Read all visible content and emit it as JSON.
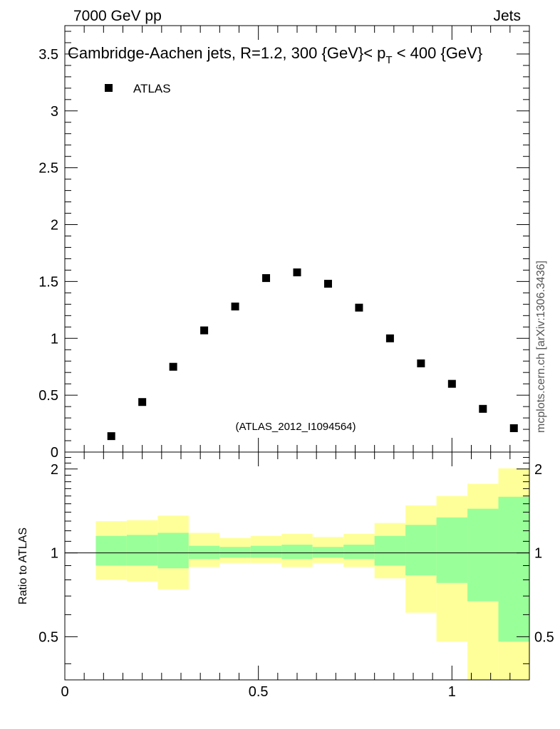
{
  "header": {
    "energy_label": "7000 GeV pp",
    "category_label": "Jets"
  },
  "side_label": "mcplots.cern.ch [arXiv:1306.3436]",
  "colors": {
    "band_inner": "#99ff99",
    "band_outer": "#ffff99",
    "marker": "#000000",
    "watermark": "#999999"
  },
  "chart_data": [
    {
      "type": "scatter",
      "title": "Cambridge-Aachen jets, R=1.2,  300 {GeV}< p_T < 400 {GeV}",
      "title_parts": {
        "pre": "Cambridge-Aachen jets, R=1.2,  300 {GeV}< p",
        "sub": "T",
        "post": " < 400 {GeV}"
      },
      "watermark": "(ATLAS_2012_I1094564)",
      "legend": {
        "label": "ATLAS",
        "position": "top-left"
      },
      "xlim": [
        0,
        1.2
      ],
      "ylim": [
        0,
        3.75
      ],
      "yticks": [
        {
          "v": 0,
          "label": "0"
        },
        {
          "v": 0.5,
          "label": "0.5"
        },
        {
          "v": 1,
          "label": "1"
        },
        {
          "v": 1.5,
          "label": "1.5"
        },
        {
          "v": 2,
          "label": "2"
        },
        {
          "v": 2.5,
          "label": "2.5"
        },
        {
          "v": 3,
          "label": "3"
        },
        {
          "v": 3.5,
          "label": "3.5"
        }
      ],
      "series": [
        {
          "name": "ATLAS",
          "x": [
            0.12,
            0.2,
            0.28,
            0.36,
            0.44,
            0.52,
            0.6,
            0.68,
            0.76,
            0.84,
            0.92,
            1.0,
            1.08,
            1.16
          ],
          "y": [
            0.14,
            0.44,
            0.75,
            1.07,
            1.28,
            1.53,
            1.58,
            1.48,
            1.27,
            1.0,
            0.78,
            0.6,
            0.38,
            0.21
          ]
        }
      ]
    },
    {
      "type": "area",
      "ylabel": "Ratio to ATLAS",
      "xlim": [
        0,
        1.2
      ],
      "ylim": [
        0.35,
        2.3
      ],
      "yscale": "log",
      "xticks": [
        {
          "v": 0,
          "label": "0"
        },
        {
          "v": 0.5,
          "label": "0.5"
        },
        {
          "v": 1,
          "label": "1"
        }
      ],
      "yticks": [
        {
          "v": 0.5,
          "label": "0.5"
        },
        {
          "v": 1,
          "label": "1"
        },
        {
          "v": 2,
          "label": "2"
        }
      ],
      "reference_line": 1,
      "bins": [
        {
          "lo": 0.08,
          "hi": 0.16,
          "in_lo": 0.9,
          "in_hi": 1.15,
          "out_lo": 0.8,
          "out_hi": 1.3
        },
        {
          "lo": 0.16,
          "hi": 0.24,
          "in_lo": 0.9,
          "in_hi": 1.16,
          "out_lo": 0.79,
          "out_hi": 1.31
        },
        {
          "lo": 0.24,
          "hi": 0.32,
          "in_lo": 0.88,
          "in_hi": 1.18,
          "out_lo": 0.74,
          "out_hi": 1.36
        },
        {
          "lo": 0.32,
          "hi": 0.4,
          "in_lo": 0.95,
          "in_hi": 1.06,
          "out_lo": 0.89,
          "out_hi": 1.18
        },
        {
          "lo": 0.4,
          "hi": 0.48,
          "in_lo": 0.96,
          "in_hi": 1.05,
          "out_lo": 0.92,
          "out_hi": 1.13
        },
        {
          "lo": 0.48,
          "hi": 0.56,
          "in_lo": 0.96,
          "in_hi": 1.06,
          "out_lo": 0.92,
          "out_hi": 1.15
        },
        {
          "lo": 0.56,
          "hi": 0.64,
          "in_lo": 0.95,
          "in_hi": 1.07,
          "out_lo": 0.89,
          "out_hi": 1.17
        },
        {
          "lo": 0.64,
          "hi": 0.72,
          "in_lo": 0.96,
          "in_hi": 1.05,
          "out_lo": 0.92,
          "out_hi": 1.14
        },
        {
          "lo": 0.72,
          "hi": 0.8,
          "in_lo": 0.95,
          "in_hi": 1.07,
          "out_lo": 0.89,
          "out_hi": 1.17
        },
        {
          "lo": 0.8,
          "hi": 0.88,
          "in_lo": 0.9,
          "in_hi": 1.15,
          "out_lo": 0.81,
          "out_hi": 1.28
        },
        {
          "lo": 0.88,
          "hi": 0.96,
          "in_lo": 0.83,
          "in_hi": 1.26,
          "out_lo": 0.61,
          "out_hi": 1.48
        },
        {
          "lo": 0.96,
          "hi": 1.04,
          "in_lo": 0.78,
          "in_hi": 1.34,
          "out_lo": 0.48,
          "out_hi": 1.6
        },
        {
          "lo": 1.04,
          "hi": 1.12,
          "in_lo": 0.67,
          "in_hi": 1.44,
          "out_lo": 0.35,
          "out_hi": 1.77
        },
        {
          "lo": 1.12,
          "hi": 1.2,
          "in_lo": 0.48,
          "in_hi": 1.59,
          "out_lo": 0.35,
          "out_hi": 2.01
        }
      ]
    }
  ]
}
